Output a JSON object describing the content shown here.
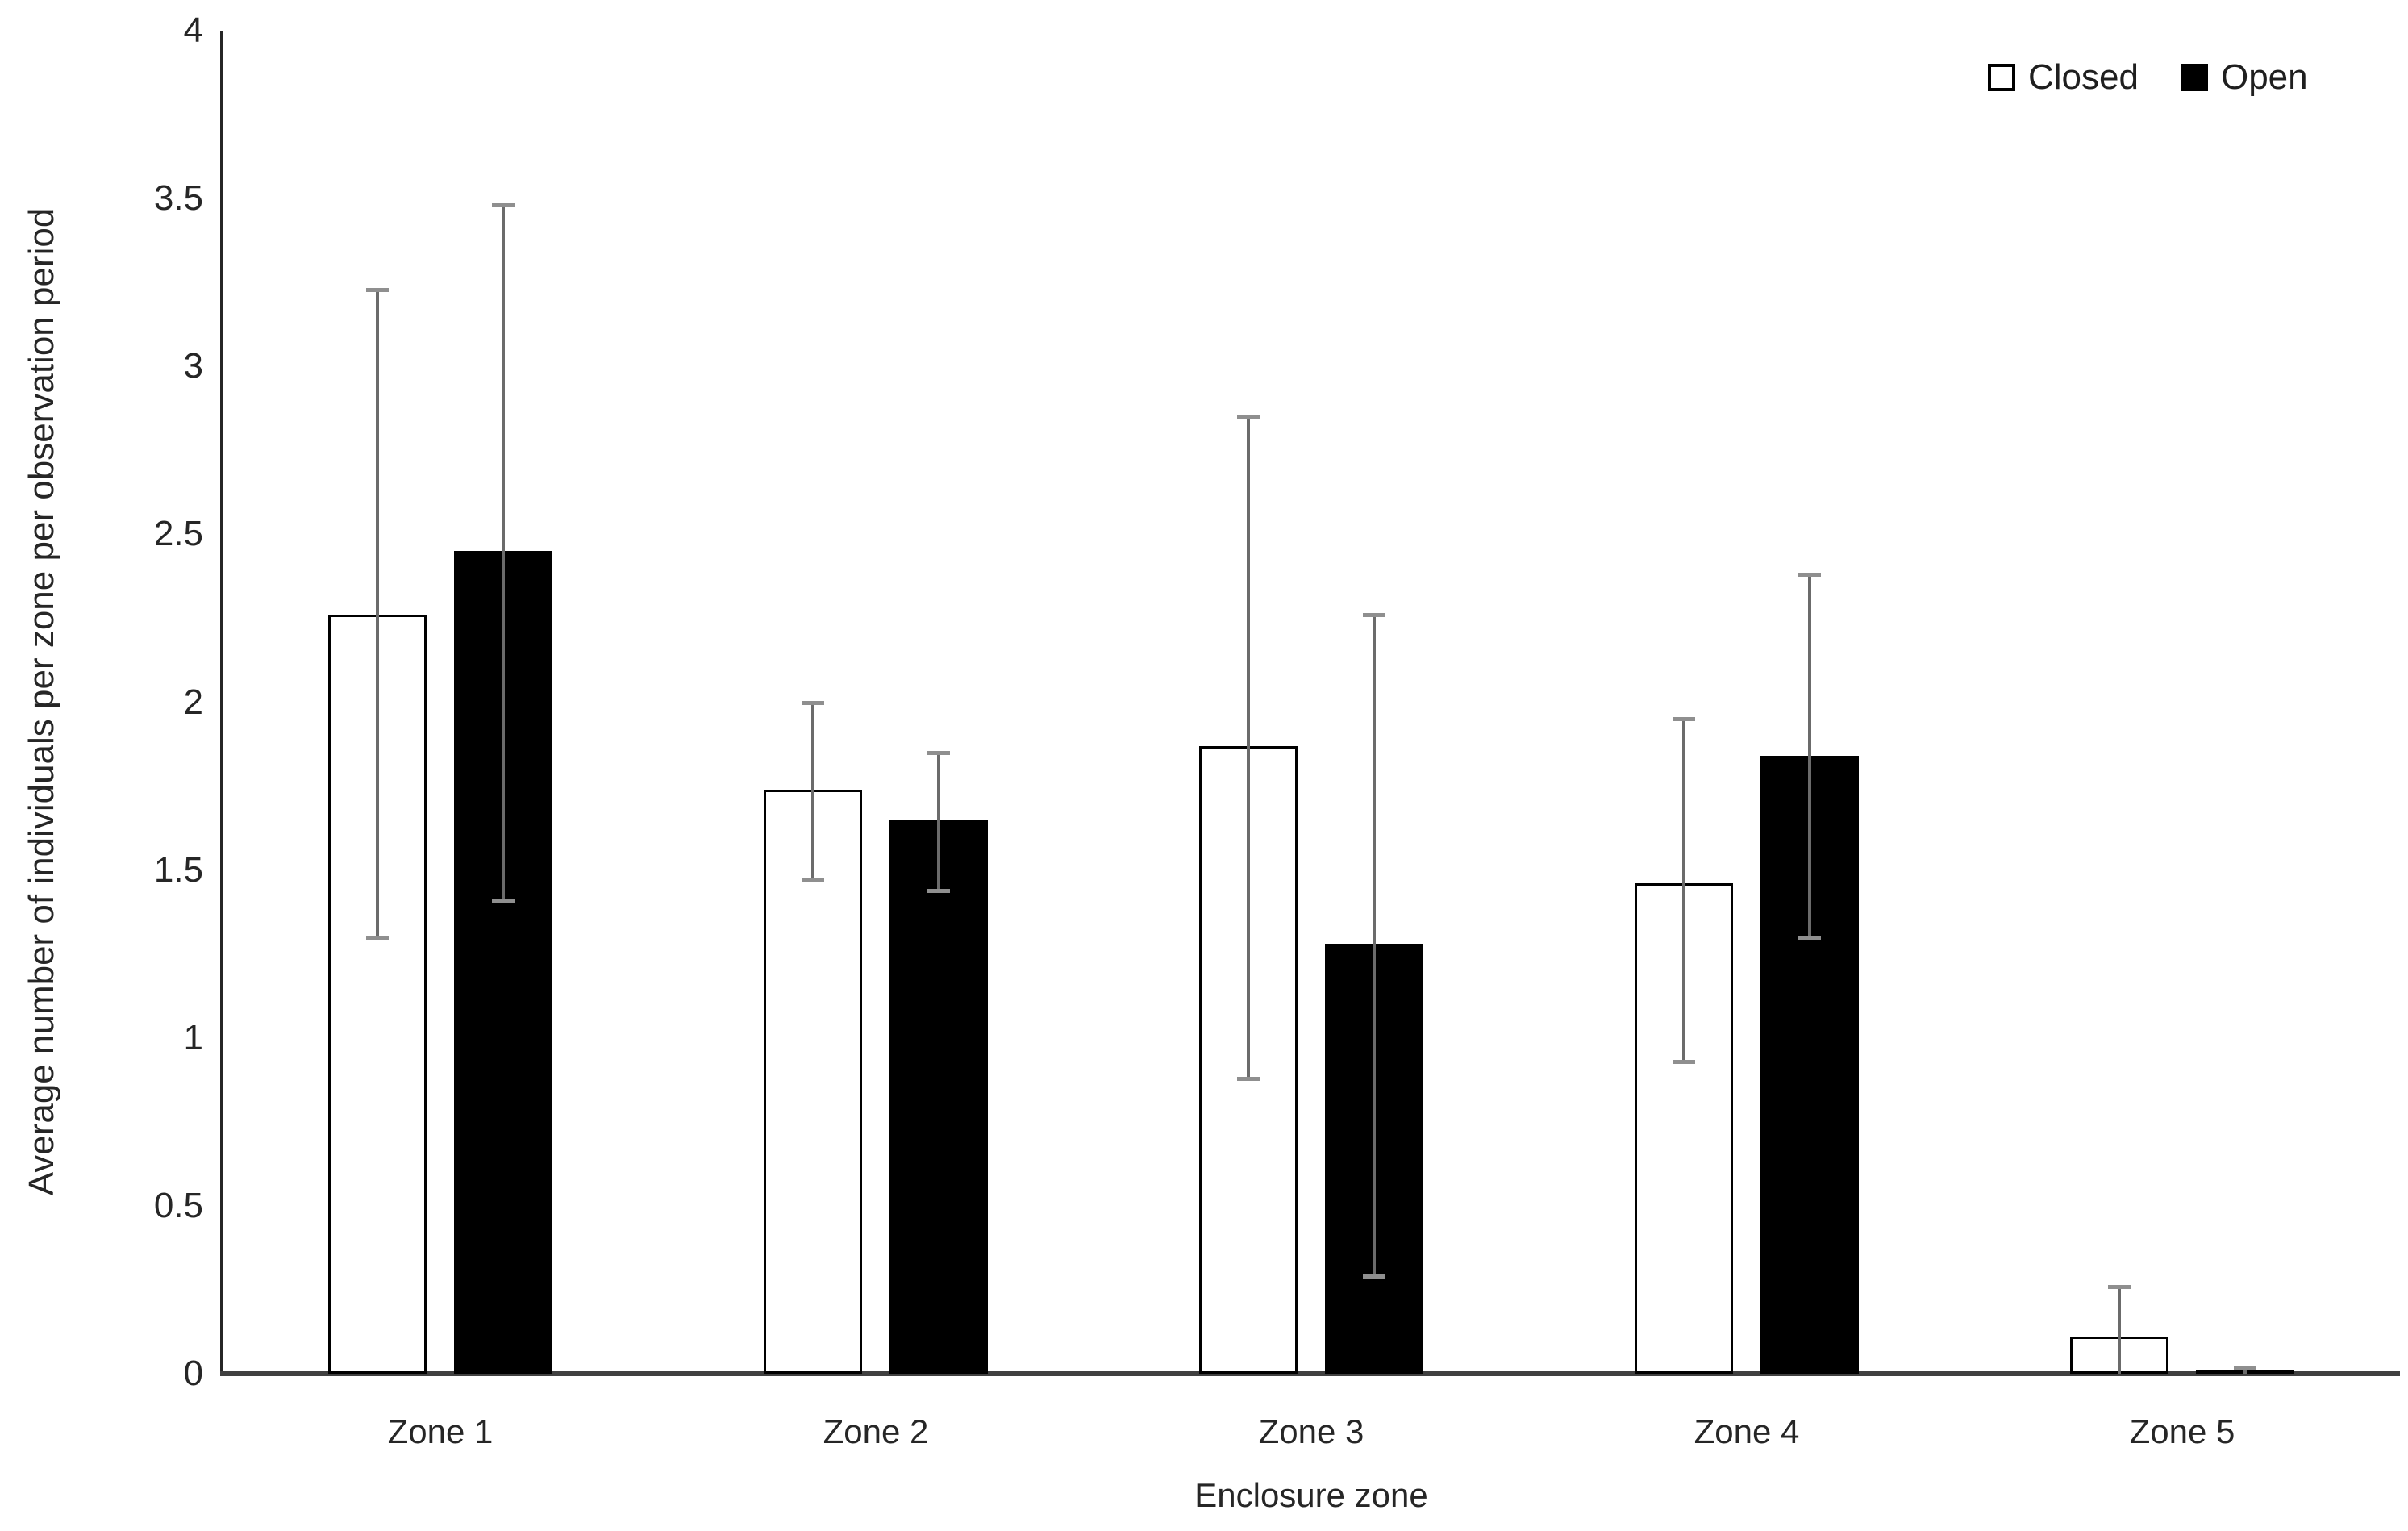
{
  "colors": {
    "bar_closed_fill": "#ffffff",
    "bar_open_fill": "#000000",
    "bar_outline": "#000000",
    "error_bar_line": "#6b6b6b",
    "error_bar_cap": "#8f8f8f",
    "axis_line": "#262626",
    "baseline": "#404040"
  },
  "legend": {
    "items": [
      {
        "label": "Closed",
        "style": "closed"
      },
      {
        "label": "Open",
        "style": "open"
      }
    ]
  },
  "chart_data": {
    "type": "bar",
    "title": "",
    "xlabel": "Enclosure zone",
    "ylabel": "Average number of individuals per zone per observation period",
    "categories": [
      "Zone 1",
      "Zone 2",
      "Zone 3",
      "Zone 4",
      "Zone 5"
    ],
    "series": [
      {
        "name": "Closed",
        "style": "closed",
        "values": [
          2.26,
          1.74,
          1.87,
          1.46,
          0.11
        ],
        "error_low": [
          1.3,
          1.47,
          0.88,
          0.93,
          0.0
        ],
        "error_high": [
          3.23,
          2.0,
          2.85,
          1.95,
          0.26
        ]
      },
      {
        "name": "Open",
        "style": "open",
        "values": [
          2.45,
          1.65,
          1.28,
          1.84,
          0.01
        ],
        "error_low": [
          1.41,
          1.44,
          0.29,
          1.3,
          0.0
        ],
        "error_high": [
          3.48,
          1.85,
          2.26,
          2.38,
          0.02
        ]
      }
    ],
    "ylim": [
      0,
      4
    ],
    "yticks": [
      0,
      0.5,
      1,
      1.5,
      2,
      2.5,
      3,
      3.5,
      4
    ],
    "ytick_labels": [
      "0",
      "0.5",
      "1",
      "1.5",
      "2",
      "2.5",
      "3",
      "3.5",
      "4"
    ],
    "grid": false,
    "legend_position": "top-right",
    "error_bars": true
  }
}
